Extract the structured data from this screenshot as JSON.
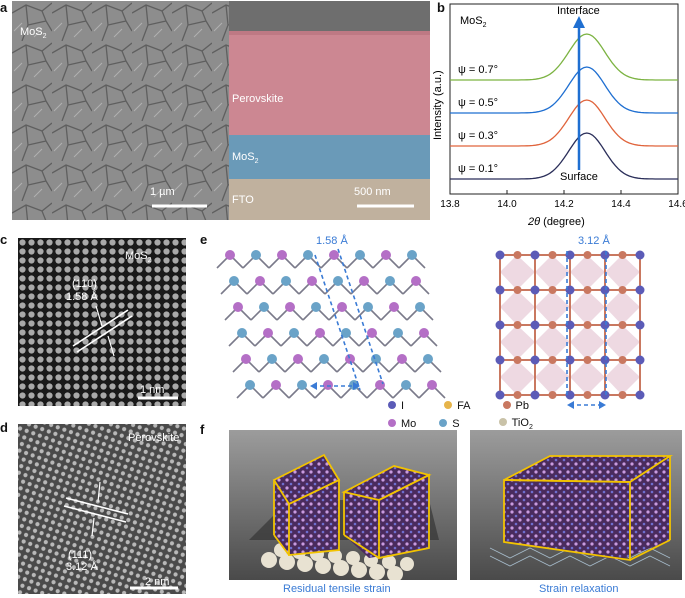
{
  "panel_labels": {
    "a": "a",
    "b": "b",
    "c": "c",
    "d": "d",
    "e": "e",
    "f": "f"
  },
  "panel_a": {
    "top_view_label": "MoS",
    "top_view_sub": "2",
    "top_scale": "1 µm",
    "layer_perovskite": "Perovskite",
    "layer_mos2": "MoS",
    "layer_mos2_sub": "2",
    "layer_fto": "FTO",
    "cross_scale": "500 nm",
    "colors": {
      "perovskite": "#c77a86",
      "mos2": "#5a8fb0",
      "fto": "#b9a894"
    }
  },
  "chart_data": {
    "type": "line",
    "legend_title": "MoS",
    "legend_title_sub": "2",
    "xlabel_var": "2θ",
    "xlabel_unit": " (degree)",
    "ylabel": "Intensity (a.u.)",
    "xlim": [
      13.8,
      14.6
    ],
    "x_ticks": [
      "13.8",
      "14.0",
      "14.2",
      "14.4",
      "14.6"
    ],
    "arrow_top_label": "Interface",
    "arrow_bottom_label": "Surface",
    "peak_center": 14.28,
    "series": [
      {
        "name": "ψ = 0.7°",
        "color": "#7cb342",
        "offset": 3
      },
      {
        "name": "ψ = 0.5°",
        "color": "#1f6fd1",
        "offset": 2
      },
      {
        "name": "ψ = 0.3°",
        "color": "#e0643c",
        "offset": 1
      },
      {
        "name": "ψ = 0.1°",
        "color": "#2b2f5a",
        "offset": 0
      }
    ]
  },
  "panel_c": {
    "label": "MoS",
    "label_sub": "2",
    "plane": "(110)",
    "spacing": "1.58 Å",
    "scale": "1 nm"
  },
  "panel_d": {
    "label": "Perovskite",
    "plane": "(111)",
    "spacing": "3.12 Å",
    "scale": "2 nm"
  },
  "panel_e": {
    "spacing_left": "1.58 Å",
    "spacing_right": "3.12 Å",
    "legend": [
      {
        "label": "I",
        "color": "#5b5bb7"
      },
      {
        "label": "FA",
        "color": "#e6b44a"
      },
      {
        "label": "Pb",
        "color": "#c97860"
      },
      {
        "label": "Mo",
        "color": "#b46fc6"
      },
      {
        "label": "S",
        "color": "#6aa3c8"
      },
      {
        "label": "TiO",
        "label_sub": "2",
        "color": "#c9c2a8"
      }
    ]
  },
  "panel_f": {
    "caption_left": "Residual tensile strain",
    "caption_right": "Strain relaxation",
    "caption_color": "#3a7bd5"
  }
}
